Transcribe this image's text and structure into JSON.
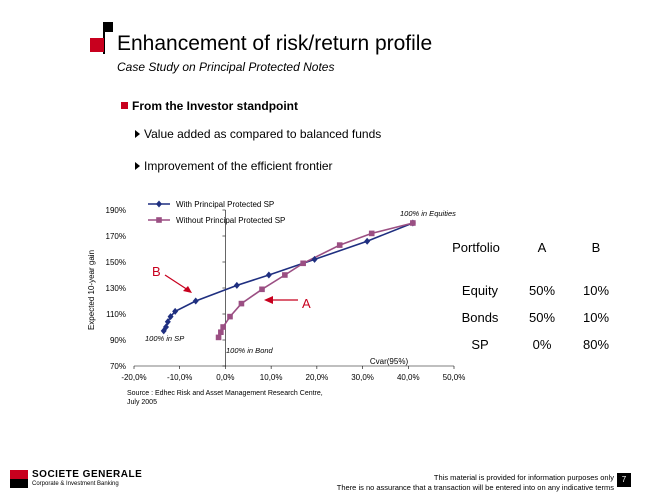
{
  "header": {
    "title": "Enhancement of risk/return profile",
    "subtitle": "Case Study on Principal Protected Notes"
  },
  "bullets": {
    "main": "From the Investor standpoint",
    "sub1": "Value added as compared to balanced funds",
    "sub2": "Improvement of the efficient frontier"
  },
  "colors": {
    "accent": "#c8001e",
    "series_with": "#1f2f80",
    "series_without": "#9b4f83"
  },
  "chart_data": {
    "type": "line",
    "xlabel": "Cvar(95%)",
    "ylabel": "Expected 10-year gain",
    "xlim": [
      -20,
      50
    ],
    "ylim": [
      70,
      190
    ],
    "xticks": [
      -20,
      -10,
      0,
      10,
      20,
      30,
      40,
      50
    ],
    "xtick_labels": [
      "-20,0%",
      "-10,0%",
      "0,0%",
      "10,0%",
      "20,0%",
      "30,0%",
      "40,0%",
      "50,0%"
    ],
    "yticks": [
      70,
      90,
      110,
      130,
      150,
      170,
      190
    ],
    "ytick_labels": [
      "70%",
      "90%",
      "110%",
      "130%",
      "150%",
      "170%",
      "190%"
    ],
    "legend_position": "top",
    "series": [
      {
        "name": "With Principal Protected SP",
        "color": "#1f2f80",
        "marker": "diamond",
        "points": [
          [
            -13.5,
            97
          ],
          [
            -13,
            100
          ],
          [
            -12.6,
            104
          ],
          [
            -12,
            108
          ],
          [
            -11,
            112
          ],
          [
            -6.5,
            120
          ],
          [
            2.5,
            132
          ],
          [
            9.5,
            140
          ],
          [
            19.5,
            152
          ],
          [
            31,
            166
          ],
          [
            41,
            180
          ]
        ]
      },
      {
        "name": "Without Principal Protected SP",
        "color": "#9b4f83",
        "marker": "square",
        "points": [
          [
            -1.5,
            92
          ],
          [
            -1,
            96
          ],
          [
            -0.5,
            100
          ],
          [
            1,
            108
          ],
          [
            3.5,
            118
          ],
          [
            8,
            129
          ],
          [
            13,
            140
          ],
          [
            17,
            149
          ],
          [
            25,
            163
          ],
          [
            32,
            172
          ],
          [
            41,
            180
          ]
        ]
      }
    ],
    "annotations": [
      {
        "text": "100% in Equities"
      },
      {
        "text": "100% in SP"
      },
      {
        "text": "100% in  Bond"
      },
      {
        "text": "B"
      },
      {
        "text": "A"
      }
    ]
  },
  "portfolio_table": {
    "headers": [
      "Portfolio",
      "A",
      "B"
    ],
    "rows": [
      [
        "Equity",
        "50%",
        "10%"
      ],
      [
        "Bonds",
        "50%",
        "10%"
      ],
      [
        "SP",
        "0%",
        "80%"
      ]
    ]
  },
  "source": "Source : Edhec Risk and Asset Management Research Centre, July 2005",
  "footer": {
    "disclaimer1": "This material is provided for information purposes only",
    "disclaimer2": "There is no assurance that a transaction will be entered into on any indicative terms",
    "page_number": "7",
    "logo_name": "SOCIETE GENERALE",
    "logo_sub": "Corporate & Investment Banking"
  }
}
